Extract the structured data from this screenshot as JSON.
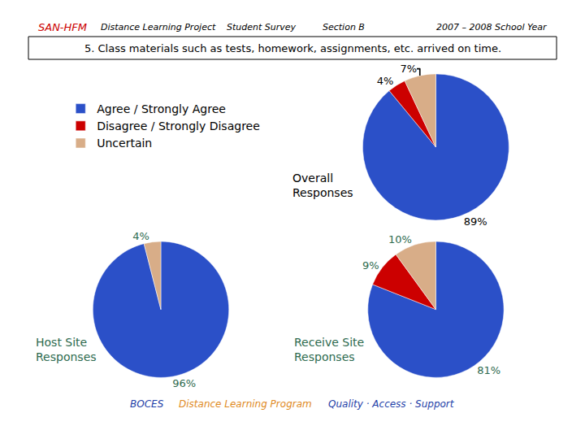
{
  "header": {
    "items": [
      "SAN-HFM",
      "Distance Learning Project",
      "Student Survey",
      "Section B",
      "2007 – 2008 School Year"
    ],
    "question": "5. Class materials such as tests, homework, assignments, etc. arrived on time."
  },
  "chart_data": [
    {
      "type": "pie",
      "title": "Overall Responses",
      "categories": [
        "Agree / Strongly Agree",
        "Disagree / Strongly Disagree",
        "Uncertain"
      ],
      "values": [
        89,
        4,
        7
      ],
      "value_labels": [
        "89%",
        "4%",
        "7%"
      ],
      "colors": [
        "#2b50c8",
        "#cc0000",
        "#d8ad88"
      ],
      "data_labels": true,
      "legend": "top left"
    },
    {
      "type": "pie",
      "title": "Host Site Responses",
      "categories": [
        "Agree / Strongly Agree",
        "Uncertain"
      ],
      "values": [
        96,
        4
      ],
      "value_labels": [
        "96%",
        "4%"
      ],
      "colors": [
        "#2b50c8",
        "#d8ad88"
      ],
      "data_labels": true
    },
    {
      "type": "pie",
      "title": "Receive Site Responses",
      "categories": [
        "Agree / Strongly Agree",
        "Disagree / Strongly Disagree",
        "Uncertain"
      ],
      "values": [
        81,
        9,
        10
      ],
      "value_labels": [
        "81%",
        "9%",
        "10%"
      ],
      "colors": [
        "#2b50c8",
        "#cc0000",
        "#d8ad88"
      ],
      "data_labels": true
    }
  ],
  "footer": [
    "BOCES",
    "Distance Learning Program",
    "Quality · Access · Support"
  ]
}
